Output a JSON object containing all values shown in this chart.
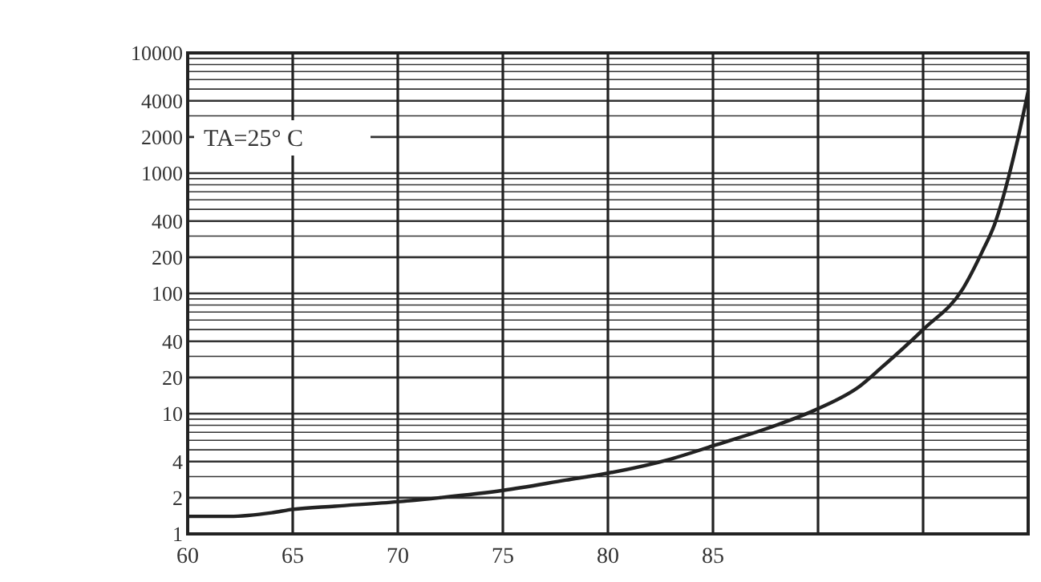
{
  "chart_data": {
    "type": "line",
    "log": "y",
    "grid": true,
    "marker": "none",
    "line_style": "solid",
    "x": [
      60,
      62,
      64,
      65,
      67,
      70,
      72,
      75,
      78,
      80,
      83,
      85,
      88,
      90,
      92,
      93,
      95,
      96.9,
      97.8,
      98.4,
      99.5,
      100
    ],
    "series": [
      {
        "color": "#222222",
        "values": [
          1.4,
          1.4,
          1.5,
          1.6,
          1.7,
          1.85,
          2,
          2.3,
          2.8,
          3.2,
          4.2,
          5.4,
          8,
          11,
          17,
          24,
          50,
          110,
          220,
          375,
          1900,
          4800
        ]
      }
    ],
    "xlim": [
      60,
      100
    ],
    "xticks": [
      60,
      65,
      70,
      75,
      80,
      85,
      {
        "value": 90,
        "label": null
      },
      {
        "value": 95,
        "label": null
      }
    ],
    "ylim": [
      1,
      10000
    ],
    "yticks": [
      1,
      2,
      {
        "value": 3,
        "label": null
      },
      4,
      {
        "value": 5,
        "label": null
      },
      {
        "value": 6,
        "label": null
      },
      {
        "value": 7,
        "label": null
      },
      {
        "value": 8,
        "label": null
      },
      {
        "value": 9,
        "label": null
      },
      10,
      20,
      {
        "value": 30,
        "label": null
      },
      40,
      {
        "value": 50,
        "label": null
      },
      {
        "value": 60,
        "label": null
      },
      {
        "value": 70,
        "label": null
      },
      {
        "value": 80,
        "label": null
      },
      {
        "value": 90,
        "label": null
      },
      100,
      200,
      {
        "value": 300,
        "label": null
      },
      400,
      {
        "value": 500,
        "label": null
      },
      {
        "value": 600,
        "label": null
      },
      {
        "value": 700,
        "label": null
      },
      {
        "value": 800,
        "label": null
      },
      {
        "value": 900,
        "label": null
      },
      1000,
      2000,
      {
        "value": 3000,
        "label": null
      },
      4000,
      {
        "value": 5000,
        "label": null
      },
      {
        "value": 6000,
        "label": null
      },
      {
        "value": 7000,
        "label": null
      },
      {
        "value": 8000,
        "label": null
      },
      {
        "value": 9000,
        "label": null
      },
      10000
    ],
    "annotations": [
      "TA=25° C"
    ]
  }
}
